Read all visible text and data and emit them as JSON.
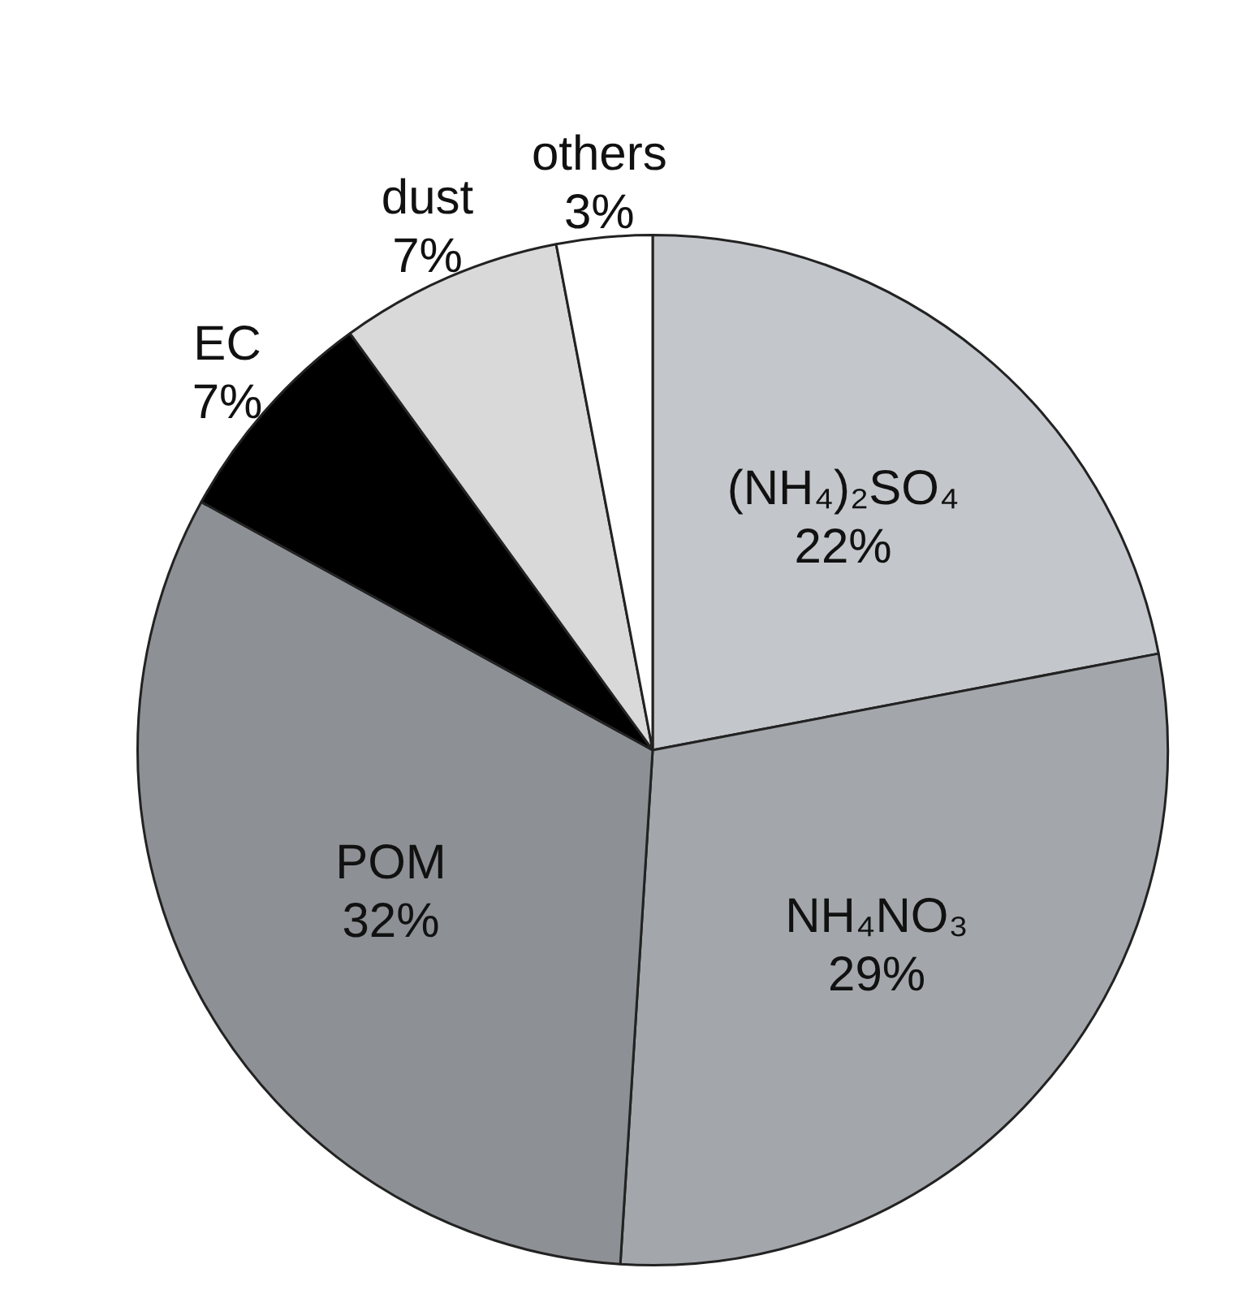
{
  "chart_data": {
    "type": "pie",
    "categories": [
      "(NH₄)₂SO₄",
      "NH₄NO₃",
      "POM",
      "EC",
      "dust",
      "others"
    ],
    "values": [
      22,
      29,
      32,
      7,
      7,
      3
    ],
    "value_labels": [
      "22%",
      "29%",
      "32%",
      "7%",
      "7%",
      "3%"
    ],
    "colors": [
      "#c3c6ca",
      "#a3a7ab",
      "#8d9195",
      "#000000",
      "#d9d9d9",
      "#ffffff"
    ],
    "legend": false
  }
}
